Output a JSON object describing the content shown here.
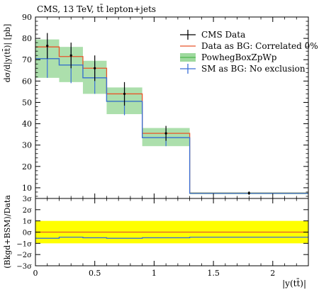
{
  "chart_data": [
    {
      "type": "line",
      "title": "CMS, 13 TeV, tt̄ lepton+jets",
      "xlabel": "|y(tt̄)|",
      "ylabel": "dσ/d|y(tt̄)| [pb]",
      "xlim": [
        0,
        2.3
      ],
      "ylim": [
        5,
        90
      ],
      "x_ticks": [
        0,
        0.5,
        1,
        1.5,
        2
      ],
      "x_tick_labels": [
        "0",
        "0.5",
        "1",
        "1.5",
        "2"
      ],
      "y_ticks": [
        10,
        20,
        30,
        40,
        50,
        60,
        70,
        80,
        90
      ],
      "y_tick_labels": [
        "10",
        "20",
        "30",
        "40",
        "50",
        "60",
        "70",
        "80",
        "90"
      ],
      "bin_edges": [
        0,
        0.2,
        0.4,
        0.6,
        0.9,
        1.3,
        2.3
      ],
      "legend_position": "top-right",
      "grid": false,
      "series": [
        {
          "name": "CMS Data",
          "kind": "points",
          "color": "#000000",
          "x": [
            0.1,
            0.3,
            0.5,
            0.75,
            1.1,
            1.8
          ],
          "values": [
            76.5,
            72.0,
            66.0,
            54.0,
            35.5,
            7.5
          ],
          "err": [
            6.0,
            6.0,
            6.0,
            5.5,
            3.5,
            0.8
          ]
        },
        {
          "name": "Data as BG: Correlated 0%",
          "kind": "histogram",
          "color": "#e8542a",
          "values": [
            76.0,
            71.5,
            66.0,
            54.0,
            35.5,
            7.5
          ]
        },
        {
          "name": "PowhegBoxZpWp",
          "kind": "band",
          "color": "#4fb84f",
          "fill": "#9ed99e",
          "values": [
            70.5,
            67.5,
            61.5,
            50.5,
            33.5,
            7.4
          ],
          "low": [
            61.5,
            59.5,
            54.0,
            44.5,
            29.5,
            7.0
          ],
          "high": [
            79.5,
            76.0,
            69.5,
            57.0,
            38.0,
            7.9
          ]
        },
        {
          "name": "SM as BG: No exclusion",
          "kind": "histogram",
          "color": "#3a6fd8",
          "values": [
            70.5,
            67.5,
            61.5,
            50.5,
            33.5,
            7.4
          ],
          "err": [
            9.0,
            8.5,
            7.5,
            6.5,
            4.0,
            0.5
          ]
        }
      ]
    },
    {
      "type": "line",
      "ylabel": "(Bkgd+BSM)/Data",
      "xlabel": "|y(tt̄)|",
      "xlim": [
        0,
        2.3
      ],
      "ylim": [
        -3,
        3
      ],
      "y_tick_labels": [
        "3σ",
        "2σ",
        "1σ",
        "0σ",
        "−1σ",
        "−2σ",
        "−3σ"
      ],
      "y_ticks": [
        3,
        2,
        1,
        0,
        -1,
        -2,
        -3
      ],
      "band": {
        "low": -1,
        "high": 1,
        "color": "#ffff00"
      },
      "series": [
        {
          "name": "Data as BG: Correlated 0%",
          "color": "#e8542a",
          "values": [
            0,
            0,
            0,
            0,
            0,
            0
          ]
        },
        {
          "name": "SM as BG: No exclusion",
          "color": "#3a6fd8",
          "values": [
            -0.55,
            -0.45,
            -0.5,
            -0.55,
            -0.5,
            -0.45
          ]
        }
      ]
    }
  ]
}
